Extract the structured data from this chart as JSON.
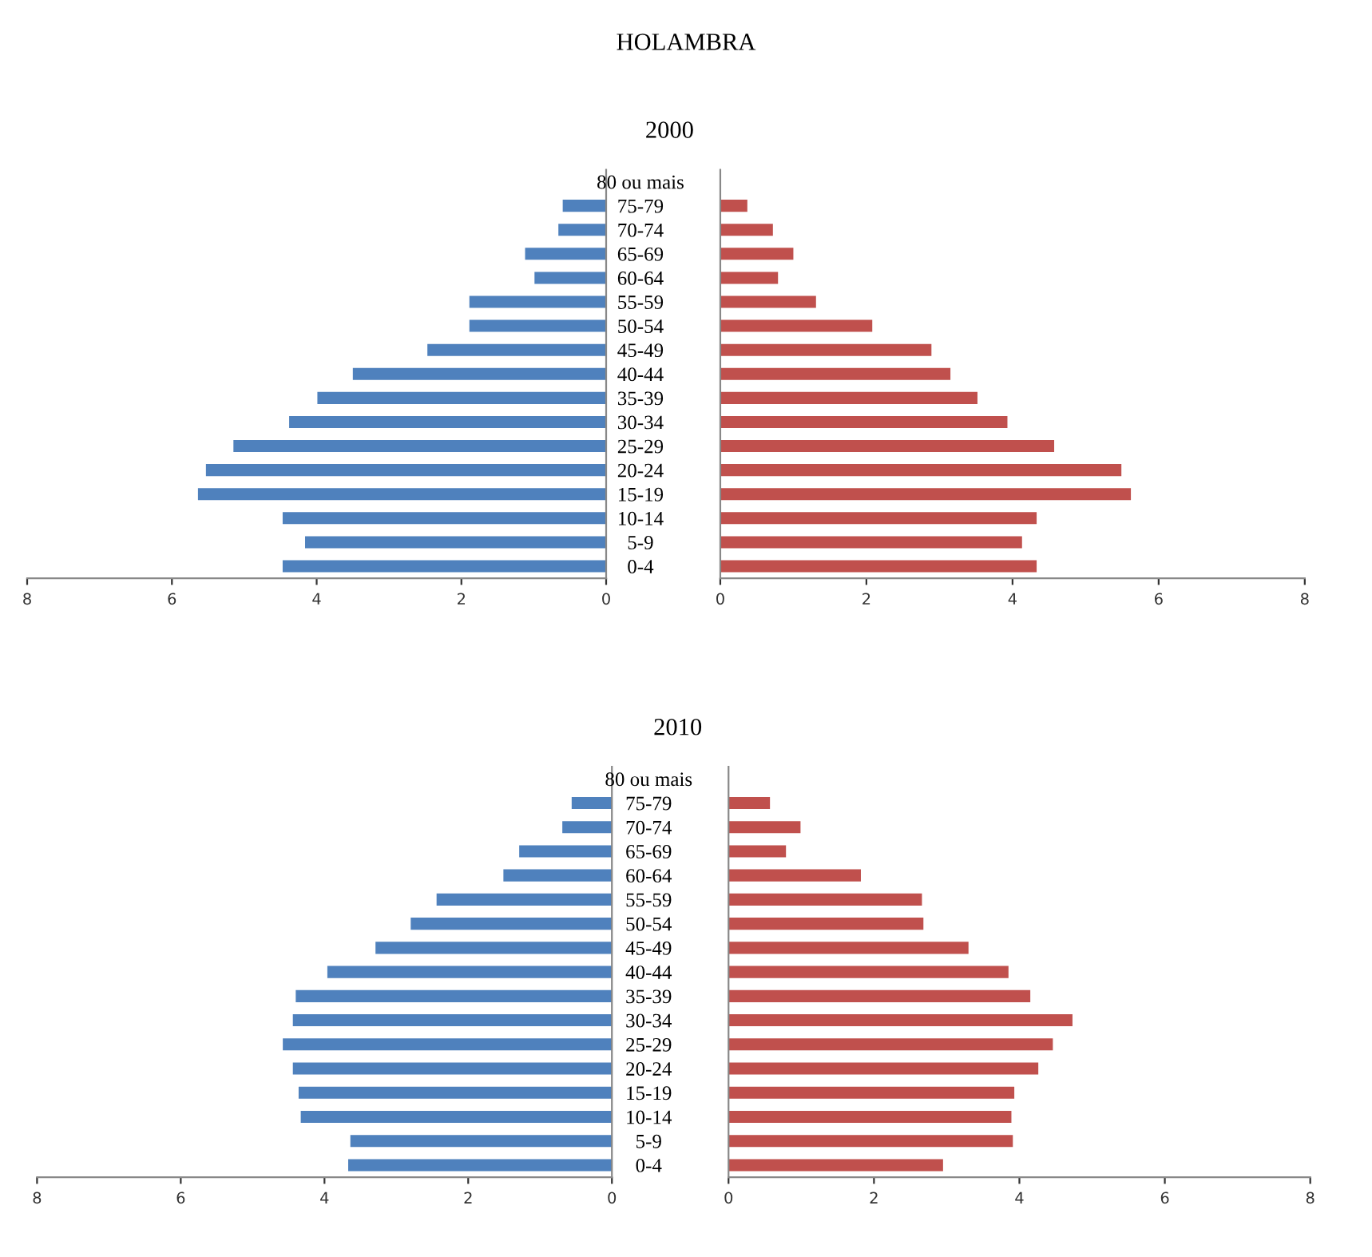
{
  "chart_data": [
    {
      "type": "bar",
      "orientation": "horizontal",
      "title": "HOLAMBRA",
      "categories": [
        null,
        null,
        null,
        null,
        null,
        null,
        null,
        null,
        null,
        null,
        null,
        null,
        null,
        null,
        null,
        null,
        null
      ],
      "tick_labels": "x",
      "xlim": [
        8,
        0
      ],
      "xticks": [
        0,
        2,
        4,
        6,
        8
      ],
      "series": [
        {
          "color": "#4f81bd",
          "values": [
            0,
            0.6,
            0.66,
            1.12,
            0.99,
            1.89,
            1.89,
            2.47,
            3.5,
            3.99,
            4.38,
            5.15,
            5.53,
            5.64,
            4.47,
            4.16,
            4.47
          ]
        }
      ]
    },
    {
      "type": "bar",
      "orientation": "horizontal",
      "subtitle": "2000",
      "categories": [
        "80 ou mais",
        "75-79",
        "70-74",
        "65-69",
        "60-64",
        "55-59",
        "50-54",
        "45-49",
        "40-44",
        "35-39",
        "30-34",
        "25-29",
        "20-24",
        "15-19",
        "10-14",
        "5-9",
        "0-4"
      ],
      "xlim": [
        0,
        8
      ],
      "xticks": [
        0,
        2,
        4,
        6,
        8
      ],
      "series": [
        {
          "color": "#c0504d",
          "values": [
            0,
            0.37,
            0.72,
            1.0,
            0.79,
            1.31,
            2.08,
            2.89,
            3.15,
            3.52,
            3.93,
            4.57,
            5.49,
            5.62,
            4.33,
            4.13,
            4.33
          ]
        }
      ]
    },
    {
      "type": "bar",
      "orientation": "horizontal",
      "categories": [
        null,
        null,
        null,
        null,
        null,
        null,
        null,
        null,
        null,
        null,
        null,
        null,
        null,
        null,
        null,
        null,
        null
      ],
      "tick_labels": "x",
      "xlim": [
        8,
        0
      ],
      "xticks": [
        0,
        2,
        4,
        6,
        8
      ],
      "series": [
        {
          "color": "#4f81bd",
          "values": [
            0,
            0.56,
            0.69,
            1.29,
            1.51,
            2.44,
            2.8,
            3.29,
            3.96,
            4.4,
            4.44,
            4.58,
            4.44,
            4.36,
            4.33,
            3.64,
            3.67
          ]
        }
      ]
    },
    {
      "type": "bar",
      "orientation": "horizontal",
      "subtitle": "2010",
      "categories": [
        "80 ou mais",
        "75-79",
        "70-74",
        "65-69",
        "60-64",
        "55-59",
        "50-54",
        "45-49",
        "40-44",
        "35-39",
        "30-34",
        "25-29",
        "20-24",
        "15-19",
        "10-14",
        "5-9",
        "0-4"
      ],
      "xlim": [
        0,
        8
      ],
      "xticks": [
        0,
        2,
        4,
        6,
        8
      ],
      "series": [
        {
          "color": "#c0504d",
          "values": [
            0,
            0.57,
            0.99,
            0.79,
            1.82,
            2.66,
            2.68,
            3.3,
            3.85,
            4.15,
            4.73,
            4.46,
            4.26,
            3.93,
            3.89,
            3.91,
            2.95
          ]
        }
      ]
    }
  ]
}
